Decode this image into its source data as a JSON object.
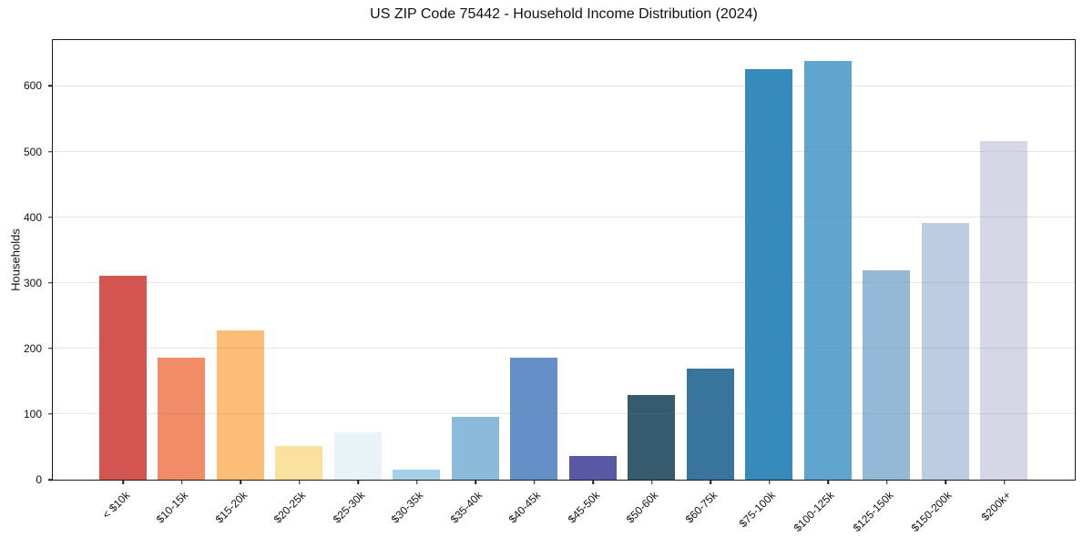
{
  "chart_data": {
    "type": "bar",
    "title": "US ZIP Code 75442 - Household Income Distribution (2024)",
    "xlabel": "",
    "ylabel": "Households",
    "ylim": [
      0,
      670
    ],
    "yticks": [
      0,
      100,
      200,
      300,
      400,
      500,
      600
    ],
    "grid": "horizontal",
    "legend": "none",
    "categories": [
      "< $10k",
      "$10-15k",
      "$15-20k",
      "$20-25k",
      "$25-30k",
      "$30-35k",
      "$35-40k",
      "$40-45k",
      "$45-50k",
      "$50-60k",
      "$60-75k",
      "$75-100k",
      "$100-125k",
      "$125-150k",
      "$150-200k",
      "$200k+"
    ],
    "values": [
      310,
      185,
      227,
      51,
      71,
      15,
      95,
      185,
      35,
      128,
      168,
      625,
      638,
      318,
      390,
      515
    ],
    "bar_colors": [
      "#d4544f",
      "#f28b67",
      "#fbbd77",
      "#fae19f",
      "#e9f3f7",
      "#a5cfe7",
      "#8cbada",
      "#6590c7",
      "#5958a6",
      "#375b6e",
      "#38749b",
      "#378abc",
      "#5fa5cd",
      "#94b9d7",
      "#bdcce1",
      "#d5d7e4"
    ],
    "frame_color": "#1a1a1a",
    "grid_color": "#e8e8e8",
    "background_color": "#ffffff"
  }
}
